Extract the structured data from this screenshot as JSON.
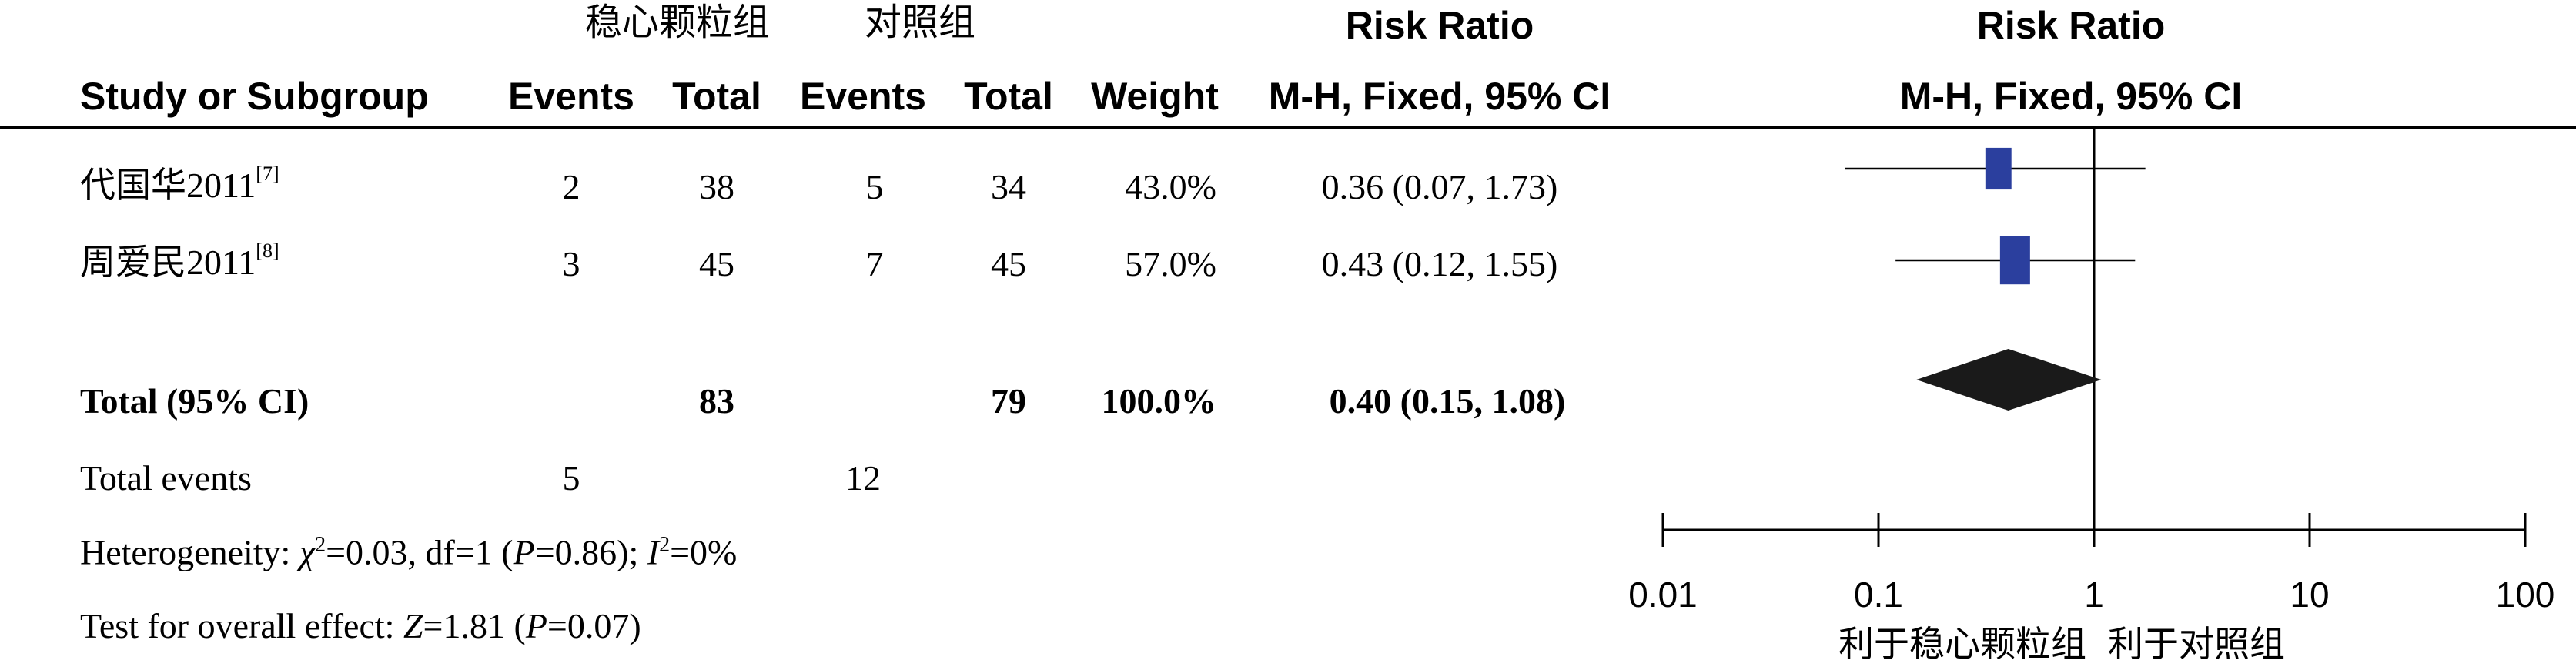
{
  "header": {
    "group1_name": "稳心颗粒组",
    "group2_name": "对照组",
    "study_col": "Study or Subgroup",
    "events": "Events",
    "total": "Total",
    "weight": "Weight",
    "rr_title": "Risk Ratio",
    "rr_method": "M-H, Fixed, 95% CI",
    "plot_title": "Risk Ratio",
    "plot_method": "M-H, Fixed, 95% CI"
  },
  "studies": [
    {
      "name": "代国华2011",
      "ref": "[7]",
      "e1": "2",
      "t1": "38",
      "e2": "5",
      "t2": "34",
      "weight": "43.0%",
      "ci_text": "0.36 (0.07, 1.73)"
    },
    {
      "name": "周爱民2011",
      "ref": "[8]",
      "e1": "3",
      "t1": "45",
      "e2": "7",
      "t2": "45",
      "weight": "57.0%",
      "ci_text": "0.43 (0.12, 1.55)"
    }
  ],
  "total": {
    "label": "Total (95% CI)",
    "t1": "83",
    "t2": "79",
    "weight": "100.0%",
    "ci_text": "0.40 (0.15, 1.08)"
  },
  "total_events": {
    "label": "Total events",
    "e1": "5",
    "e2": "12"
  },
  "heterogeneity": {
    "prefix": "Heterogeneity: ",
    "chi": "χ",
    "chi_exp": "2",
    "chi_val": "=0.03, df=1 (",
    "p_sym": "P",
    "p_val": "=0.86); ",
    "i_sym": "I",
    "i_exp": "2",
    "i_val": "=0%"
  },
  "overall": {
    "prefix": "Test for overall effect: ",
    "z_sym": "Z",
    "z_val": "=1.81 (",
    "p_sym": "P",
    "p_val": "=0.07)"
  },
  "axis": {
    "favours_left": "利于稳心颗粒组",
    "favours_right": "利于对照组"
  },
  "chart_data": {
    "type": "forest",
    "scale": "log",
    "xlim": [
      0.01,
      100
    ],
    "ticks": [
      0.01,
      0.1,
      1,
      10,
      100
    ],
    "tick_labels": [
      "0.01",
      "0.1",
      "1",
      "10",
      "100"
    ],
    "null_value": 1,
    "series": [
      {
        "name": "代国华2011",
        "estimate": 0.36,
        "lower": 0.07,
        "upper": 1.73,
        "weight": 43.0
      },
      {
        "name": "周爱民2011",
        "estimate": 0.43,
        "lower": 0.12,
        "upper": 1.55,
        "weight": 57.0
      }
    ],
    "pooled": {
      "estimate": 0.4,
      "lower": 0.15,
      "upper": 1.08
    },
    "marker_color": "#2b3f9e",
    "diamond_color": "#1a1a1a"
  }
}
